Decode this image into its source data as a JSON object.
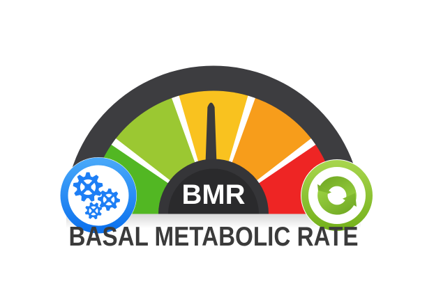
{
  "illustration": {
    "gauge_label": "BMR",
    "title": "BASAL METABOLIC RATE",
    "segments": [
      {
        "name": "low-green",
        "color": "#52b723"
      },
      {
        "name": "yellow-green",
        "color": "#9bc832"
      },
      {
        "name": "gold",
        "color": "#f9c21f"
      },
      {
        "name": "orange",
        "color": "#f79d1b"
      },
      {
        "name": "high-red",
        "color": "#ee2524"
      }
    ],
    "colors": {
      "background": "#ffffff",
      "rim": "#3d3d40",
      "needle": "#3a3a3c",
      "separator": "#ffffff",
      "hub_outer": "#353538",
      "hub_inner": "#2a2a2c",
      "gauge_label_text": "#ffffff",
      "title_text": "#3b3b3b",
      "badge_left_ring_top": "#47a7f9",
      "badge_left_ring_bottom": "#0d72ee",
      "badge_left_glyph": "#1d7ef5",
      "badge_right_ring_top": "#a6d44c",
      "badge_right_ring_bottom": "#76b21d",
      "badge_right_glyph_dark": "#6ca420",
      "badge_right_glyph_light": "#9ad141"
    },
    "badges": {
      "left": {
        "icon": "gears"
      },
      "right": {
        "icon": "refresh-arrows"
      }
    }
  }
}
